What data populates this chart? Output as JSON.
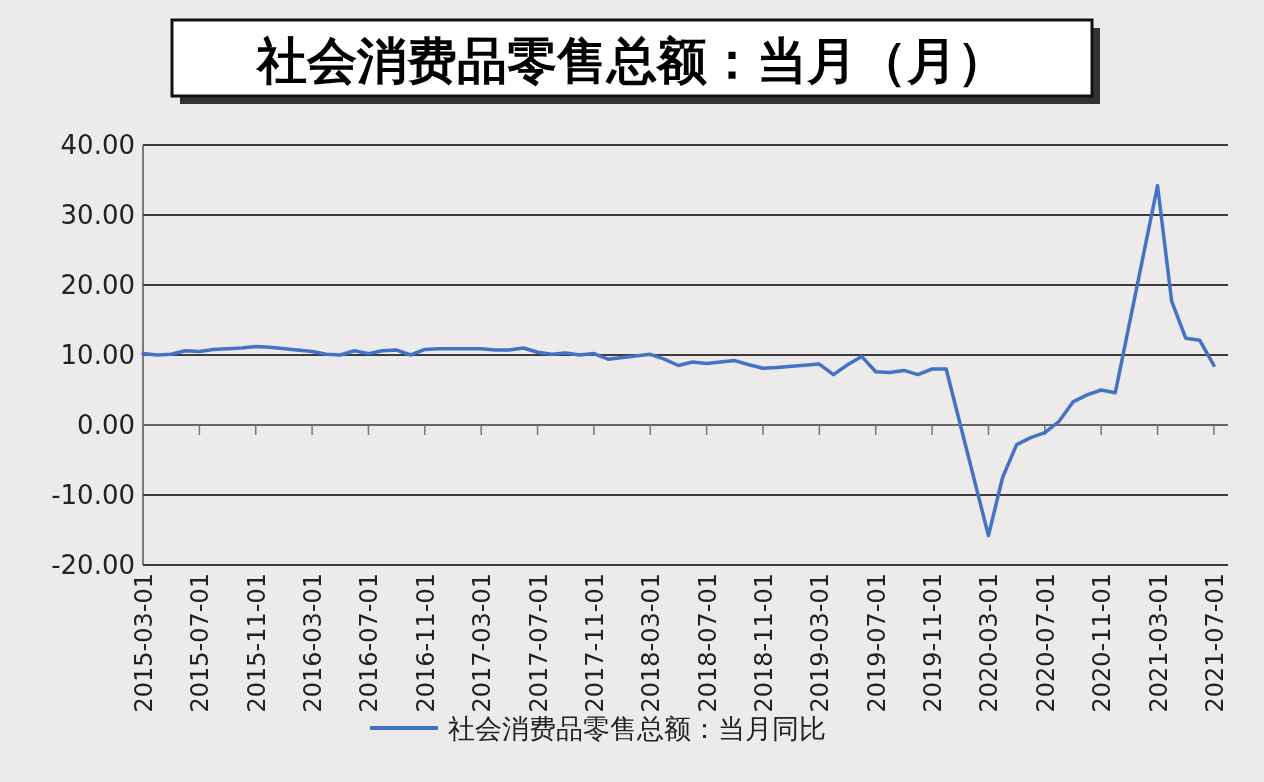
{
  "chart_data": {
    "type": "line",
    "title": "社会消费品零售总额：当月（月）",
    "x": [
      "2015-03",
      "2015-04",
      "2015-05",
      "2015-06",
      "2015-07",
      "2015-08",
      "2015-09",
      "2015-10",
      "2015-11",
      "2015-12",
      "2016-03",
      "2016-04",
      "2016-05",
      "2016-06",
      "2016-07",
      "2016-08",
      "2016-09",
      "2016-10",
      "2016-11",
      "2016-12",
      "2017-03",
      "2017-04",
      "2017-05",
      "2017-06",
      "2017-07",
      "2017-08",
      "2017-09",
      "2017-10",
      "2017-11",
      "2017-12",
      "2018-03",
      "2018-04",
      "2018-05",
      "2018-06",
      "2018-07",
      "2018-08",
      "2018-09",
      "2018-10",
      "2018-11",
      "2018-12",
      "2019-03",
      "2019-04",
      "2019-05",
      "2019-06",
      "2019-07",
      "2019-08",
      "2019-09",
      "2019-10",
      "2019-11",
      "2019-12",
      "2020-03",
      "2020-04",
      "2020-05",
      "2020-06",
      "2020-07",
      "2020-08",
      "2020-09",
      "2020-10",
      "2020-11",
      "2020-12",
      "2021-03",
      "2021-04",
      "2021-05",
      "2021-06",
      "2021-07"
    ],
    "series": [
      {
        "name": "社会消费品零售总额：当月同比",
        "color": "#4472c4",
        "values": [
          10.2,
          10.0,
          10.1,
          10.6,
          10.5,
          10.8,
          10.9,
          11.0,
          11.2,
          11.1,
          10.5,
          10.1,
          10.0,
          10.6,
          10.2,
          10.6,
          10.7,
          10.0,
          10.8,
          10.9,
          10.9,
          10.7,
          10.7,
          11.0,
          10.4,
          10.1,
          10.3,
          10.0,
          10.2,
          9.4,
          10.1,
          9.4,
          8.5,
          9.0,
          8.8,
          9.0,
          9.2,
          8.6,
          8.1,
          8.2,
          8.7,
          7.2,
          8.6,
          9.8,
          7.6,
          7.5,
          7.8,
          7.2,
          8.0,
          8.0,
          -15.8,
          -7.5,
          -2.8,
          -1.8,
          -1.1,
          0.5,
          3.3,
          4.3,
          5.0,
          4.6,
          34.2,
          17.7,
          12.4,
          12.1,
          8.5
        ]
      }
    ],
    "xlim": [
      "2015-03",
      "2021-08"
    ],
    "xticks": [
      {
        "value": "2015-03",
        "label": "2015-03-01"
      },
      {
        "value": "2015-07",
        "label": "2015-07-01"
      },
      {
        "value": "2015-11",
        "label": "2015-11-01"
      },
      {
        "value": "2016-03",
        "label": "2016-03-01"
      },
      {
        "value": "2016-07",
        "label": "2016-07-01"
      },
      {
        "value": "2016-11",
        "label": "2016-11-01"
      },
      {
        "value": "2017-03",
        "label": "2017-03-01"
      },
      {
        "value": "2017-07",
        "label": "2017-07-01"
      },
      {
        "value": "2017-11",
        "label": "2017-11-01"
      },
      {
        "value": "2018-03",
        "label": "2018-03-01"
      },
      {
        "value": "2018-07",
        "label": "2018-07-01"
      },
      {
        "value": "2018-11",
        "label": "2018-11-01"
      },
      {
        "value": "2019-03",
        "label": "2019-03-01"
      },
      {
        "value": "2019-07",
        "label": "2019-07-01"
      },
      {
        "value": "2019-11",
        "label": "2019-11-01"
      },
      {
        "value": "2020-03",
        "label": "2020-03-01"
      },
      {
        "value": "2020-07",
        "label": "2020-07-01"
      },
      {
        "value": "2020-11",
        "label": "2020-11-01"
      },
      {
        "value": "2021-03",
        "label": "2021-03-01"
      },
      {
        "value": "2021-07",
        "label": "2021-07-01"
      }
    ],
    "ylim": [
      -20,
      40
    ],
    "yticks": [
      {
        "value": -20,
        "label": "-20.00"
      },
      {
        "value": -10,
        "label": "-10.00"
      },
      {
        "value": 0,
        "label": "0.00"
      },
      {
        "value": 10,
        "label": "10.00"
      },
      {
        "value": 20,
        "label": "20.00"
      },
      {
        "value": 30,
        "label": "30.00"
      },
      {
        "value": 40,
        "label": "40.00"
      }
    ],
    "grid": "y",
    "legend": "bottom",
    "marker": "none",
    "line_style": "solid"
  }
}
